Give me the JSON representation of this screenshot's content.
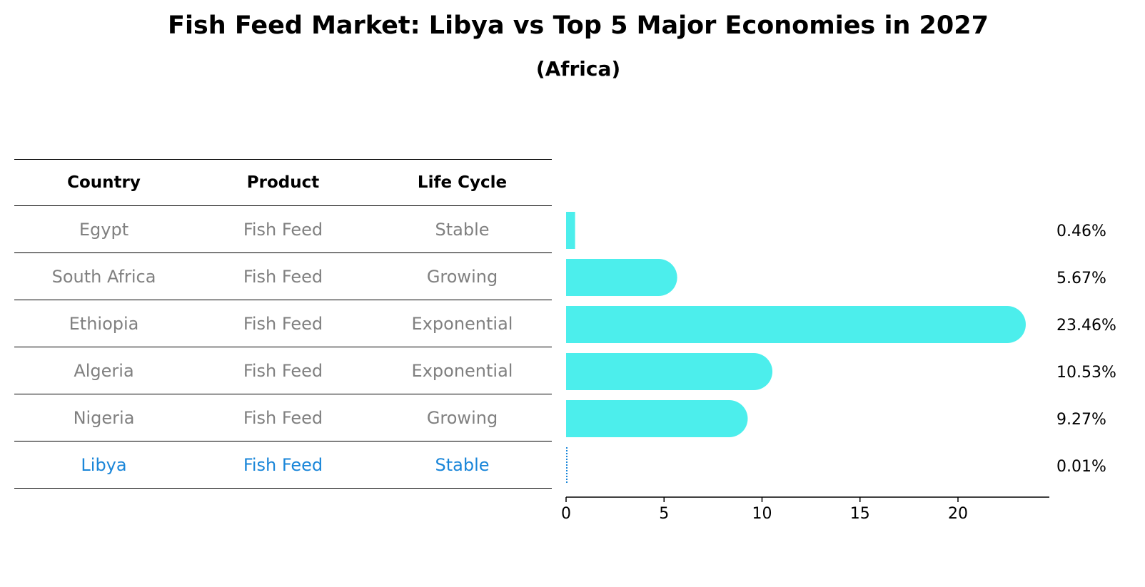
{
  "title": "Fish Feed Market: Libya vs Top 5 Major Economies in 2027",
  "subtitle": "(Africa)",
  "table": {
    "headers": [
      "Country",
      "Product",
      "Life Cycle"
    ],
    "rows": [
      {
        "country": "Egypt",
        "product": "Fish Feed",
        "life_cycle": "Stable"
      },
      {
        "country": "South Africa",
        "product": "Fish Feed",
        "life_cycle": "Growing"
      },
      {
        "country": "Ethiopia",
        "product": "Fish Feed",
        "life_cycle": "Exponential"
      },
      {
        "country": "Algeria",
        "product": "Fish Feed",
        "life_cycle": "Exponential"
      },
      {
        "country": "Nigeria",
        "product": "Fish Feed",
        "life_cycle": "Growing"
      },
      {
        "country": "Libya",
        "product": "Fish Feed",
        "life_cycle": "Stable"
      }
    ],
    "highlight_color": "#1a86d9",
    "text_color": "#808080"
  },
  "chart_data": {
    "type": "bar",
    "orientation": "horizontal",
    "categories": [
      "Egypt",
      "South Africa",
      "Ethiopia",
      "Algeria",
      "Nigeria",
      "Libya"
    ],
    "values": [
      0.46,
      5.67,
      23.46,
      10.53,
      9.27,
      0.01
    ],
    "value_labels": [
      "0.46%",
      "5.67%",
      "23.46%",
      "10.53%",
      "9.27%",
      "0.01%"
    ],
    "xticks": [
      0,
      5,
      10,
      15,
      20
    ],
    "xlim": [
      0,
      24.4
    ],
    "bar_color": "#4ceeec",
    "highlight_category": "Libya",
    "highlight_color": "#1a86d9"
  }
}
